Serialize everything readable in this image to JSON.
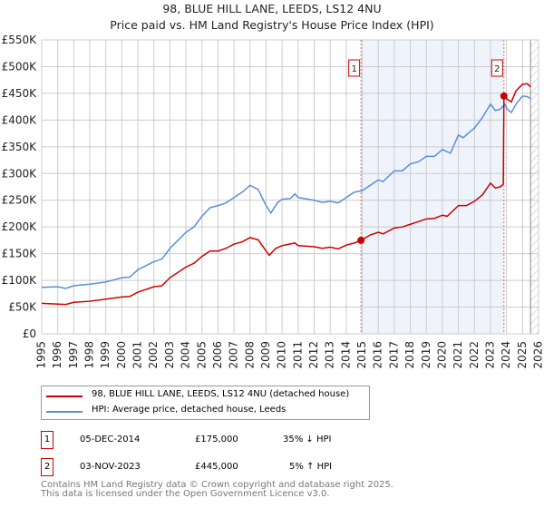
{
  "title": "98, BLUE HILL LANE, LEEDS, LS12 4NU",
  "subtitle": "Price paid vs. HM Land Registry's House Price Index (HPI)",
  "chart_data": {
    "type": "line",
    "title": "98, BLUE HILL LANE, LEEDS, LS12 4NU",
    "subtitle": "Price paid vs. HM Land Registry's House Price Index (HPI)",
    "xlim": [
      1995,
      2026
    ],
    "ylim": [
      0,
      550000
    ],
    "xticks": [
      "1995",
      "1996",
      "1997",
      "1998",
      "1999",
      "2000",
      "2001",
      "2002",
      "2003",
      "2004",
      "2005",
      "2006",
      "2007",
      "2008",
      "2009",
      "2010",
      "2011",
      "2012",
      "2013",
      "2014",
      "2015",
      "2016",
      "2017",
      "2018",
      "2019",
      "2020",
      "2021",
      "2022",
      "2023",
      "2024",
      "2025",
      "2026"
    ],
    "yticks": [
      {
        "v": 0,
        "l": "£0"
      },
      {
        "v": 50000,
        "l": "£50K"
      },
      {
        "v": 100000,
        "l": "£100K"
      },
      {
        "v": 150000,
        "l": "£150K"
      },
      {
        "v": 200000,
        "l": "£200K"
      },
      {
        "v": 250000,
        "l": "£250K"
      },
      {
        "v": 300000,
        "l": "£300K"
      },
      {
        "v": 350000,
        "l": "£350K"
      },
      {
        "v": 400000,
        "l": "£400K"
      },
      {
        "v": 450000,
        "l": "£450K"
      },
      {
        "v": 500000,
        "l": "£500K"
      },
      {
        "v": 550000,
        "l": "£550K"
      }
    ],
    "grid": true,
    "shaded_range": [
      2014.92,
      2023.84
    ],
    "forecast_from": 2025.5,
    "series": [
      {
        "name": "98, BLUE HILL LANE, LEEDS, LS12 4NU (detached house)",
        "color": "#cc0000",
        "x": [
          1995,
          1996.5,
          1997,
          1998,
          1999,
          2000,
          2000.5,
          2001,
          2002,
          2002.5,
          2003,
          2004,
          2004.5,
          2005,
          2005.5,
          2006,
          2006.5,
          2007,
          2007.5,
          2008,
          2008.5,
          2009,
          2009.2,
          2009.6,
          2010,
          2010.8,
          2011,
          2012,
          2012.5,
          2013,
          2013.5,
          2014,
          2014.5,
          2014.92,
          2015.5,
          2016,
          2016.3,
          2017,
          2017.5,
          2018,
          2018.5,
          2019,
          2019.5,
          2020,
          2020.3,
          2021,
          2021.5,
          2022,
          2022.5,
          2023,
          2023.3,
          2023.6,
          2023.8,
          2023.84,
          2024,
          2024.3,
          2024.6,
          2025,
          2025.3,
          2025.5
        ],
        "y": [
          57000,
          55000,
          59000,
          61000,
          65000,
          69000,
          70000,
          78000,
          88000,
          90000,
          105000,
          125000,
          132000,
          145000,
          155000,
          155000,
          160000,
          168000,
          172000,
          180000,
          176000,
          155000,
          147000,
          160000,
          165000,
          170000,
          165000,
          163000,
          160000,
          162000,
          159000,
          166000,
          170000,
          175000,
          185000,
          190000,
          187000,
          198000,
          200000,
          205000,
          210000,
          215000,
          216000,
          222000,
          220000,
          240000,
          240000,
          248000,
          260000,
          282000,
          273000,
          275000,
          280000,
          445000,
          440000,
          434000,
          455000,
          467000,
          468000,
          462000
        ]
      },
      {
        "name": "HPI: Average price, detached house, Leeds",
        "color": "#5b8fd6",
        "x": [
          1995,
          1996,
          1996.5,
          1997,
          1998,
          1999,
          2000,
          2000.5,
          2001,
          2002,
          2002.5,
          2003,
          2004,
          2004.5,
          2005,
          2005.5,
          2006,
          2006.5,
          2007,
          2007.5,
          2008,
          2008.5,
          2009,
          2009.3,
          2009.7,
          2010,
          2010.5,
          2010.8,
          2011,
          2012,
          2012.5,
          2013,
          2013.5,
          2014,
          2014.5,
          2015,
          2016,
          2016.3,
          2017,
          2017.5,
          2018,
          2018.5,
          2019,
          2019.5,
          2020,
          2020.5,
          2021,
          2021.3,
          2021.6,
          2022,
          2022.5,
          2023,
          2023.3,
          2023.6,
          2023.9,
          2024,
          2024.3,
          2024.6,
          2025,
          2025.3,
          2025.5
        ],
        "y": [
          87000,
          88000,
          85000,
          90000,
          93000,
          97000,
          105000,
          106000,
          120000,
          135000,
          140000,
          160000,
          190000,
          200000,
          220000,
          236000,
          240000,
          245000,
          255000,
          265000,
          278000,
          270000,
          240000,
          226000,
          245000,
          252000,
          253000,
          262000,
          255000,
          250000,
          246000,
          248000,
          245000,
          255000,
          265000,
          268000,
          288000,
          285000,
          305000,
          305000,
          318000,
          322000,
          332000,
          332000,
          345000,
          338000,
          372000,
          367000,
          375000,
          385000,
          405000,
          430000,
          418000,
          420000,
          430000,
          422000,
          414000,
          430000,
          445000,
          444000,
          440000
        ]
      }
    ],
    "sales": [
      {
        "id": "1",
        "x": 2014.92,
        "y": 175000
      },
      {
        "id": "2",
        "x": 2023.84,
        "y": 445000
      }
    ]
  },
  "legend": [
    "98, BLUE HILL LANE, LEEDS, LS12 4NU (detached house)",
    "HPI: Average price, detached house, Leeds"
  ],
  "transactions": [
    {
      "id": "1",
      "date": "05-DEC-2014",
      "price": "£175,000",
      "hpi": "35% ↓ HPI"
    },
    {
      "id": "2",
      "date": "03-NOV-2023",
      "price": "£445,000",
      "hpi": "5% ↑ HPI"
    }
  ],
  "footer": [
    "Contains HM Land Registry data © Crown copyright and database right 2025.",
    "This data is licensed under the Open Government Licence v3.0."
  ]
}
